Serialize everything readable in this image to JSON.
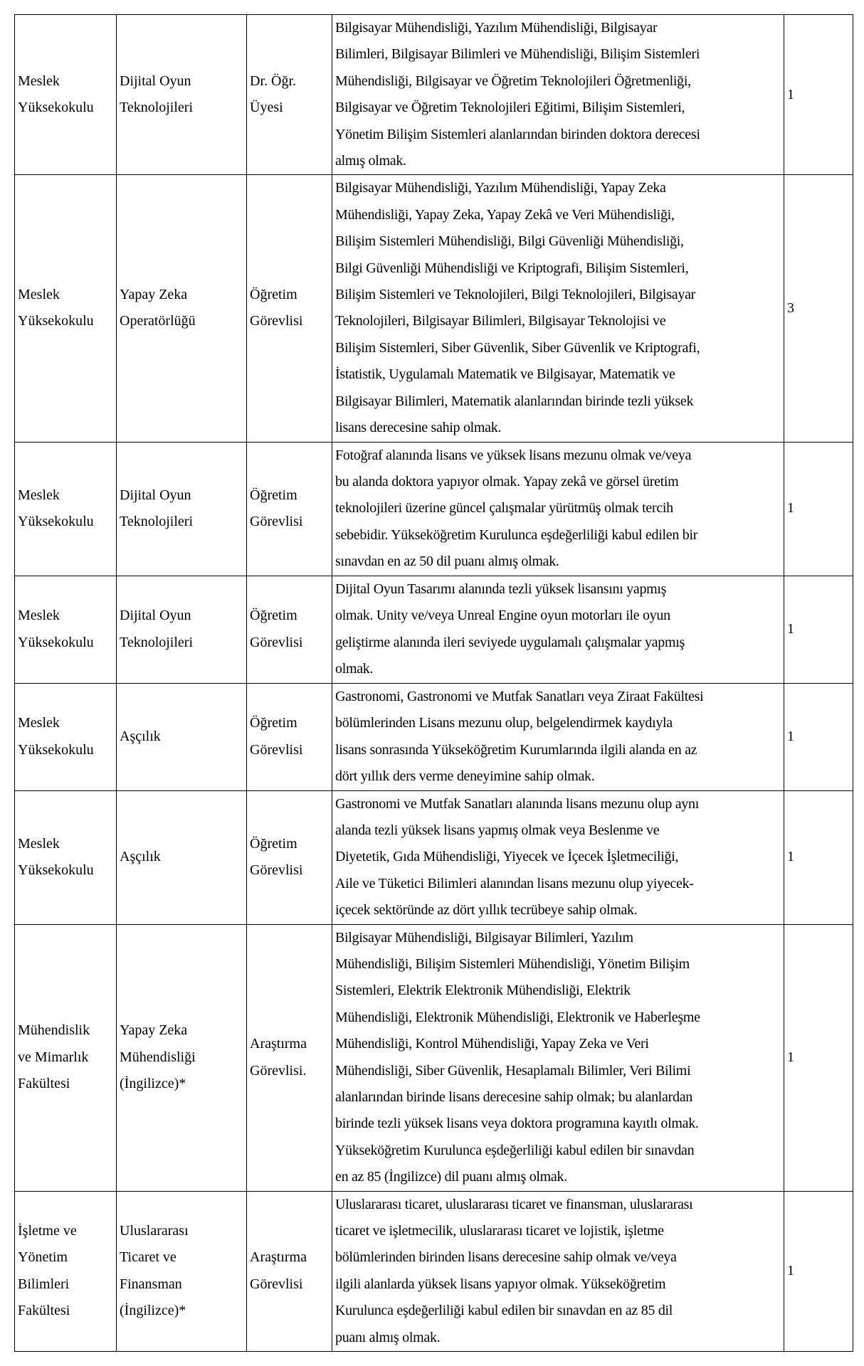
{
  "rows": [
    {
      "unit": [
        "Meslek",
        "Yüksekokulu"
      ],
      "program": [
        "Dijital Oyun",
        "Teknolojileri"
      ],
      "title": [
        "Dr. Öğr.",
        "Üyesi"
      ],
      "requirements": [
        "Bilgisayar Mühendisliği, Yazılım Mühendisliği, Bilgisayar",
        "Bilimleri, Bilgisayar Bilimleri ve Mühendisliği, Bilişim Sistemleri",
        "Mühendisliği, Bilgisayar ve Öğretim Teknolojileri Öğretmenliği,",
        "Bilgisayar ve Öğretim Teknolojileri Eğitimi, Bilişim Sistemleri,",
        "Yönetim Bilişim Sistemleri alanlarından birinden doktora derecesi",
        "almış olmak."
      ],
      "count": "1"
    },
    {
      "unit": [
        "Meslek",
        "Yüksekokulu"
      ],
      "program": [
        "Yapay Zeka",
        "Operatörlüğü"
      ],
      "title": [
        "Öğretim",
        "Görevlisi"
      ],
      "requirements": [
        "Bilgisayar Mühendisliği, Yazılım Mühendisliği, Yapay Zeka",
        "Mühendisliği, Yapay Zeka, Yapay Zekâ ve Veri Mühendisliği,",
        "Bilişim Sistemleri Mühendisliği, Bilgi Güvenliği Mühendisliği,",
        "Bilgi Güvenliği Mühendisliği ve Kriptografi, Bilişim Sistemleri,",
        "Bilişim Sistemleri ve Teknolojileri, Bilgi Teknolojileri, Bilgisayar",
        "Teknolojileri, Bilgisayar Bilimleri, Bilgisayar Teknolojisi ve",
        "Bilişim Sistemleri, Siber Güvenlik, Siber Güvenlik ve Kriptografi,",
        "İstatistik, Uygulamalı Matematik ve Bilgisayar, Matematik ve",
        "Bilgisayar Bilimleri, Matematik alanlarından birinde tezli yüksek",
        "lisans derecesine sahip olmak."
      ],
      "count": "3"
    },
    {
      "unit": [
        "Meslek",
        "Yüksekokulu"
      ],
      "program": [
        "Dijital Oyun",
        "Teknolojileri"
      ],
      "title": [
        "Öğretim",
        "Görevlisi"
      ],
      "requirements": [
        "Fotoğraf alanında lisans ve yüksek lisans mezunu olmak ve/veya",
        "bu alanda doktora yapıyor olmak. Yapay zekâ ve görsel üretim",
        "teknolojileri üzerine güncel çalışmalar yürütmüş olmak tercih",
        "sebebidir. Yükseköğretim Kurulunca eşdeğerliliği kabul edilen bir",
        "sınavdan en az 50 dil puanı almış olmak."
      ],
      "count": "1"
    },
    {
      "unit": [
        "Meslek",
        "Yüksekokulu"
      ],
      "program": [
        "Dijital Oyun",
        "Teknolojileri"
      ],
      "title": [
        "Öğretim",
        "Görevlisi"
      ],
      "requirements": [
        "Dijital Oyun Tasarımı alanında tezli yüksek lisansını yapmış",
        "olmak. Unity ve/veya Unreal Engine oyun motorları ile oyun",
        "geliştirme alanında ileri seviyede uygulamalı çalışmalar yapmış",
        "olmak."
      ],
      "count": "1"
    },
    {
      "unit": [
        "Meslek",
        "Yüksekokulu"
      ],
      "program": [
        "Aşçılık"
      ],
      "title": [
        "Öğretim",
        "Görevlisi"
      ],
      "requirements": [
        "Gastronomi, Gastronomi ve Mutfak Sanatları veya Ziraat Fakültesi",
        "bölümlerinden Lisans mezunu olup, belgelendirmek kaydıyla",
        "lisans sonrasında Yükseköğretim Kurumlarında ilgili alanda en az",
        "dört yıllık ders verme deneyimine sahip olmak."
      ],
      "count": "1"
    },
    {
      "unit": [
        "Meslek",
        "Yüksekokulu"
      ],
      "program": [
        "Aşçılık"
      ],
      "title": [
        "Öğretim",
        "Görevlisi"
      ],
      "requirements": [
        "Gastronomi ve Mutfak Sanatları alanında lisans mezunu olup aynı",
        "alanda tezli yüksek lisans yapmış olmak veya Beslenme ve",
        "Diyetetik, Gıda Mühendisliği, Yiyecek ve İçecek İşletmeciliği,",
        "Aile ve Tüketici Bilimleri alanından lisans mezunu olup yiyecek-",
        "içecek sektöründe az dört yıllık tecrübeye sahip olmak."
      ],
      "count": "1"
    },
    {
      "unit": [
        "Mühendislik",
        "ve Mimarlık",
        "Fakültesi"
      ],
      "program": [
        "Yapay Zeka",
        "Mühendisliği",
        "(İngilizce)*"
      ],
      "title": [
        "Araştırma",
        "Görevlisi."
      ],
      "requirements": [
        "Bilgisayar Mühendisliği, Bilgisayar Bilimleri, Yazılım",
        "Mühendisliği, Bilişim Sistemleri Mühendisliği, Yönetim Bilişim",
        "Sistemleri, Elektrik Elektronik Mühendisliği, Elektrik",
        "Mühendisliği, Elektronik Mühendisliği, Elektronik ve Haberleşme",
        "Mühendisliği, Kontrol Mühendisliği, Yapay Zeka ve Veri",
        "Mühendisliği, Siber Güvenlik, Hesaplamalı Bilimler, Veri Bilimi",
        "alanlarından birinde lisans derecesine sahip olmak; bu alanlardan",
        "birinde tezli yüksek lisans veya doktora programına kayıtlı olmak.",
        "Yükseköğretim Kurulunca eşdeğerliliği kabul edilen bir sınavdan",
        "en az 85 (İngilizce) dil puanı almış olmak."
      ],
      "count": "1"
    },
    {
      "unit": [
        "İşletme ve",
        "Yönetim",
        "Bilimleri",
        "Fakültesi"
      ],
      "program": [
        "Uluslararası",
        "Ticaret ve",
        "Finansman",
        "(İngilizce)*"
      ],
      "title": [
        "Araştırma",
        "Görevlisi"
      ],
      "requirements": [
        "Uluslararası ticaret, uluslararası ticaret ve finansman, uluslararası",
        "ticaret ve işletmecilik, uluslararası ticaret ve lojistik, işletme",
        "bölümlerinden birinden lisans derecesine sahip olmak ve/veya",
        "ilgili alanlarda yüksek lisans yapıyor olmak. Yükseköğretim",
        "Kurulunca eşdeğerliliği kabul edilen bir sınavdan en az 85 dil",
        "puanı almış olmak."
      ],
      "count": "1"
    }
  ]
}
